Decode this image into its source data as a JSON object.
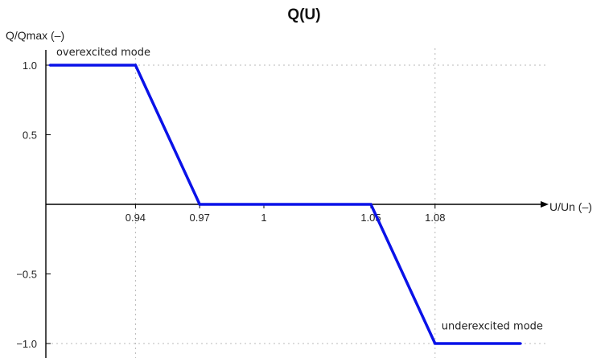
{
  "chart_data": {
    "type": "line",
    "title": "Q(U)",
    "xlabel": "U/Un (–)",
    "ylabel": "Q/Qmax (–)",
    "x": [
      0.9,
      0.94,
      0.97,
      1.05,
      1.08,
      1.12
    ],
    "series": [
      {
        "values": [
          1.0,
          1.0,
          0.0,
          0.0,
          -1.0,
          -1.0
        ],
        "color": "#0a12e8"
      }
    ],
    "x_ticks": [
      {
        "value": 0.94,
        "label": "0.94"
      },
      {
        "value": 0.97,
        "label": "0.97"
      },
      {
        "value": 1.0,
        "label": "1"
      },
      {
        "value": 1.05,
        "label": "1.05"
      },
      {
        "value": 1.08,
        "label": "1.08"
      }
    ],
    "y_ticks": [
      {
        "value": 1.0,
        "label": "1.0"
      },
      {
        "value": 0.5,
        "label": "0.5"
      },
      {
        "value": -0.5,
        "label": "−0.5"
      },
      {
        "value": -1.0,
        "label": "−1.0"
      }
    ],
    "annotations": [
      {
        "text": "overexcited mode",
        "x": 0.903,
        "y": 1.07
      },
      {
        "text": "underexcited mode",
        "x": 1.083,
        "y": -0.9
      }
    ],
    "grid": "dotted at key breakpoints",
    "axis_color": "#000000",
    "grid_color": "#b8b8b8"
  }
}
